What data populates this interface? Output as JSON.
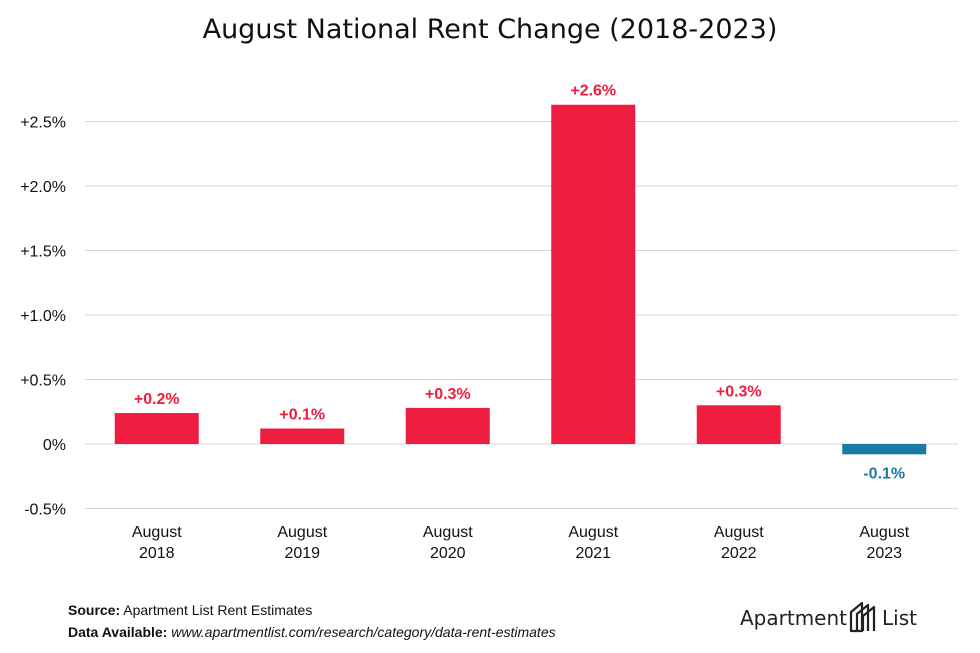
{
  "title": "August National Rent Change (2018-2023)",
  "chart_data": {
    "type": "bar",
    "categories": [
      [
        "August",
        "2018"
      ],
      [
        "August",
        "2019"
      ],
      [
        "August",
        "2020"
      ],
      [
        "August",
        "2021"
      ],
      [
        "August",
        "2022"
      ],
      [
        "August",
        "2023"
      ]
    ],
    "values": [
      0.24,
      0.12,
      0.28,
      2.63,
      0.3,
      -0.08
    ],
    "data_labels": [
      "+0.2%",
      "+0.1%",
      "+0.3%",
      "+2.6%",
      "+0.3%",
      "-0.1%"
    ],
    "ylim": [
      -0.5,
      2.75
    ],
    "yticks": [
      -0.5,
      0,
      0.5,
      1.0,
      1.5,
      2.0,
      2.5
    ],
    "ytick_labels": [
      "-0.5%",
      "0%",
      "+0.5%",
      "+1.0%",
      "+1.5%",
      "+2.0%",
      "+2.5%"
    ],
    "grid": true,
    "positive_color": "#ee1c3e",
    "negative_color": "#1a7ca6"
  },
  "footer": {
    "source_label": "Source:",
    "source_text": "Apartment List Rent Estimates",
    "data_label": "Data Available:",
    "data_text": "www.apartmentlist.com/research/category/data-rent-estimates"
  },
  "logo": {
    "left_text": "Apartment",
    "right_text": "List",
    "icon": "apartment-list-building-icon"
  }
}
